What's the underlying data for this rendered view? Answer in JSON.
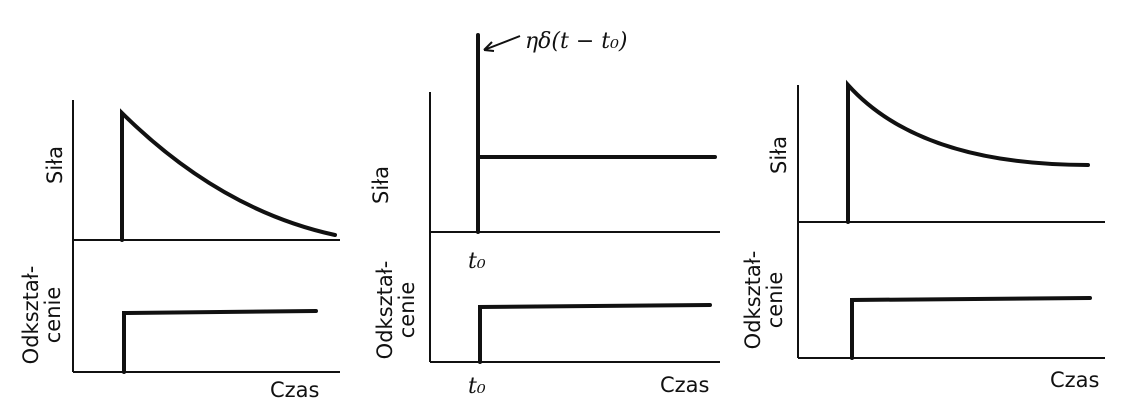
{
  "panels": [
    {
      "force_label": "Siła",
      "strain_label": [
        "Odkształ-",
        "cenie"
      ],
      "time_label": "Czas"
    },
    {
      "force_label": "Siła",
      "strain_label": [
        "Odkształ-",
        "cenie"
      ],
      "time_label": "Czas",
      "annotation": "ηδ(t − t₀)",
      "t0_labels": [
        "t₀",
        "t₀"
      ]
    },
    {
      "force_label": "Siła",
      "strain_label": [
        "Odkształ-",
        "cenie"
      ],
      "time_label": "Czas"
    }
  ]
}
